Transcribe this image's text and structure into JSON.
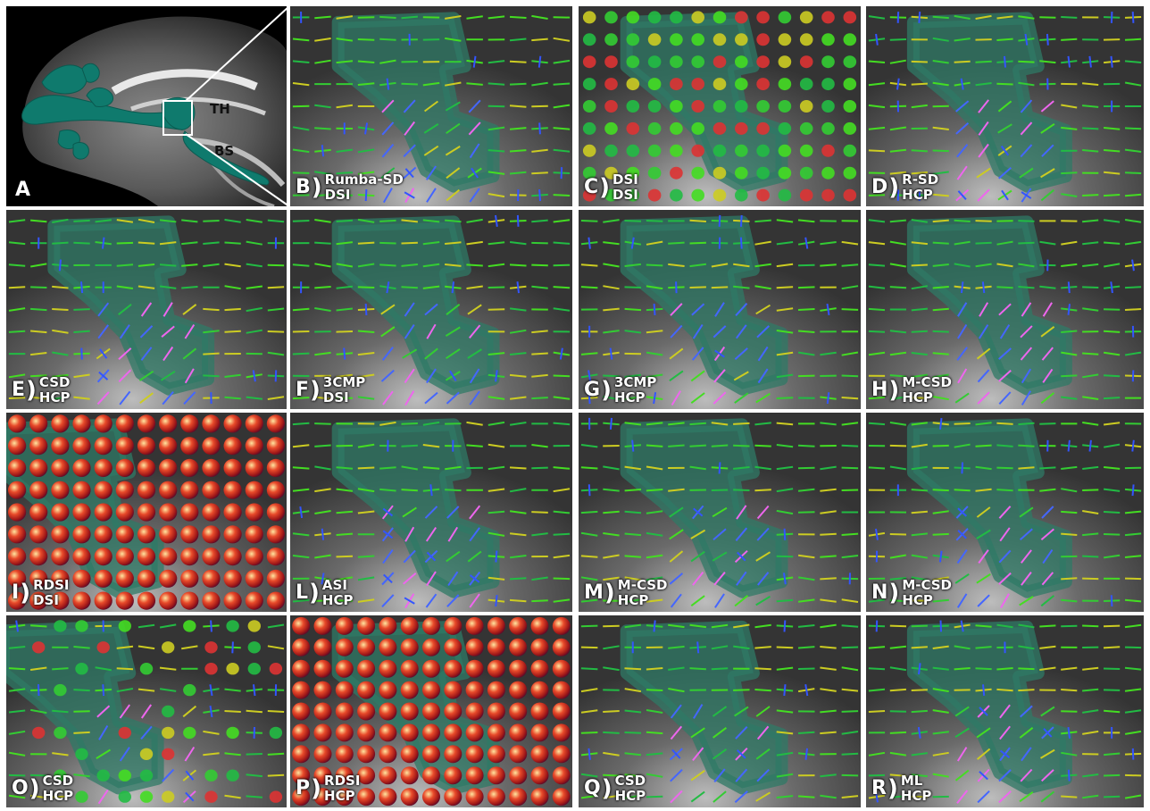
{
  "figure": {
    "panel_a": {
      "letter": "A",
      "label_th": "TH",
      "label_bs": "BS"
    },
    "panels": [
      {
        "letter": "B",
        "line1": "Rumba-SD",
        "line2": "DSI",
        "style": "sticks"
      },
      {
        "letter": "C",
        "line1": "DSI",
        "line2": "DSI",
        "style": "blobs"
      },
      {
        "letter": "D",
        "line1": "R-SD",
        "line2": "HCP",
        "style": "sticks"
      },
      {
        "letter": "E",
        "line1": "CSD",
        "line2": "HCP",
        "style": "sticks"
      },
      {
        "letter": "F",
        "line1": "3CMP",
        "line2": "DSI",
        "style": "sticks"
      },
      {
        "letter": "G",
        "line1": "3CMP",
        "line2": "HCP",
        "style": "sticks"
      },
      {
        "letter": "H",
        "line1": "M-CSD",
        "line2": "HCP",
        "style": "sticks"
      },
      {
        "letter": "I",
        "line1": "RDSI",
        "line2": "DSI",
        "style": "spheres"
      },
      {
        "letter": "L",
        "line1": "ASI",
        "line2": "HCP",
        "style": "sticks"
      },
      {
        "letter": "M",
        "line1": "M-CSD",
        "line2": "HCP",
        "style": "sticks"
      },
      {
        "letter": "N",
        "line1": "M-CSD",
        "line2": "HCP",
        "style": "sticks"
      },
      {
        "letter": "O",
        "line1": "CSD",
        "line2": "HCP",
        "style": "mixed"
      },
      {
        "letter": "P",
        "line1": "RDSI",
        "line2": "HCP",
        "style": "spheres"
      },
      {
        "letter": "Q",
        "line1": "CSD",
        "line2": "HCP",
        "style": "sticks"
      },
      {
        "letter": "R",
        "line1": "ML",
        "line2": "HCP",
        "style": "sticks"
      }
    ],
    "colors": {
      "background": "#ffffff",
      "tract": "#0f7a6d",
      "overlay": "#2f7a66",
      "label_text": "#ffffff"
    }
  }
}
